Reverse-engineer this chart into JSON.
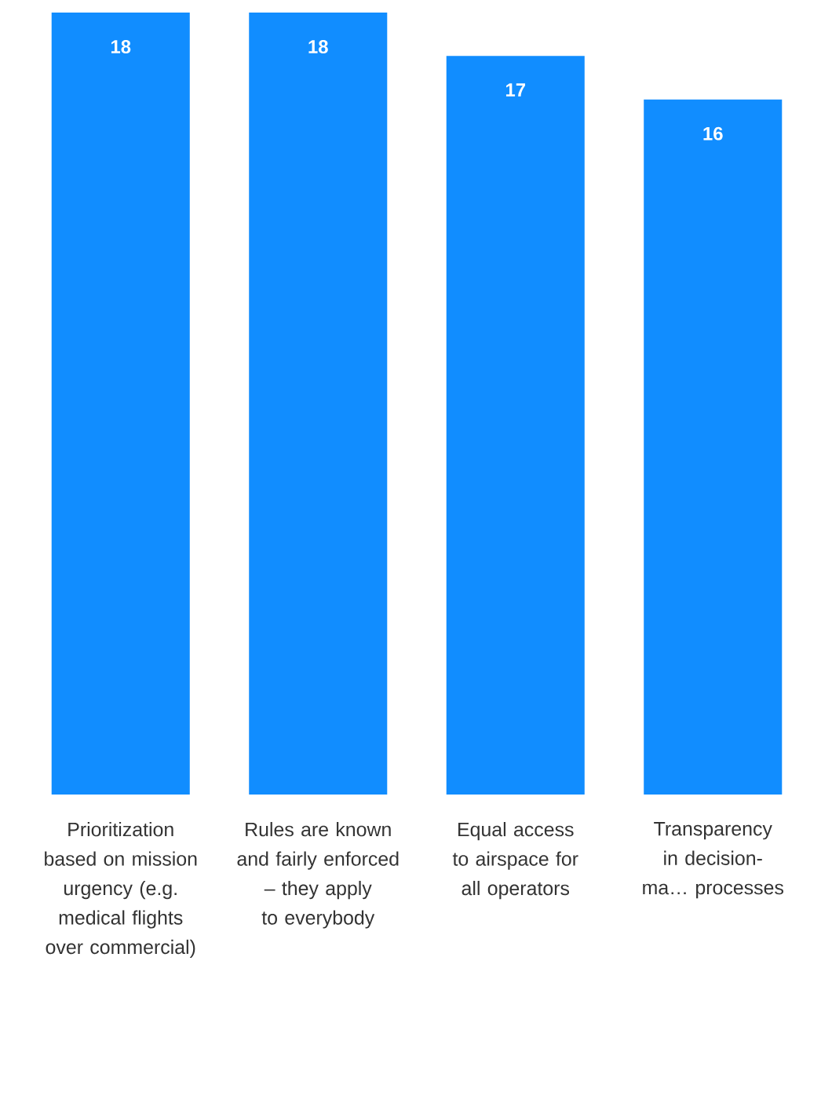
{
  "chart_data": {
    "type": "bar",
    "categories": [
      "Prioritization based on mission urgency (e.g. medical flights over commercial)",
      "Rules are known and fairly enforced – they apply to everybody",
      "Equal access to airspace for all operators",
      "Transparency in decision-ma… processes"
    ],
    "values": [
      18,
      18,
      17,
      16
    ],
    "color": "#118dff",
    "data_labels": true
  }
}
